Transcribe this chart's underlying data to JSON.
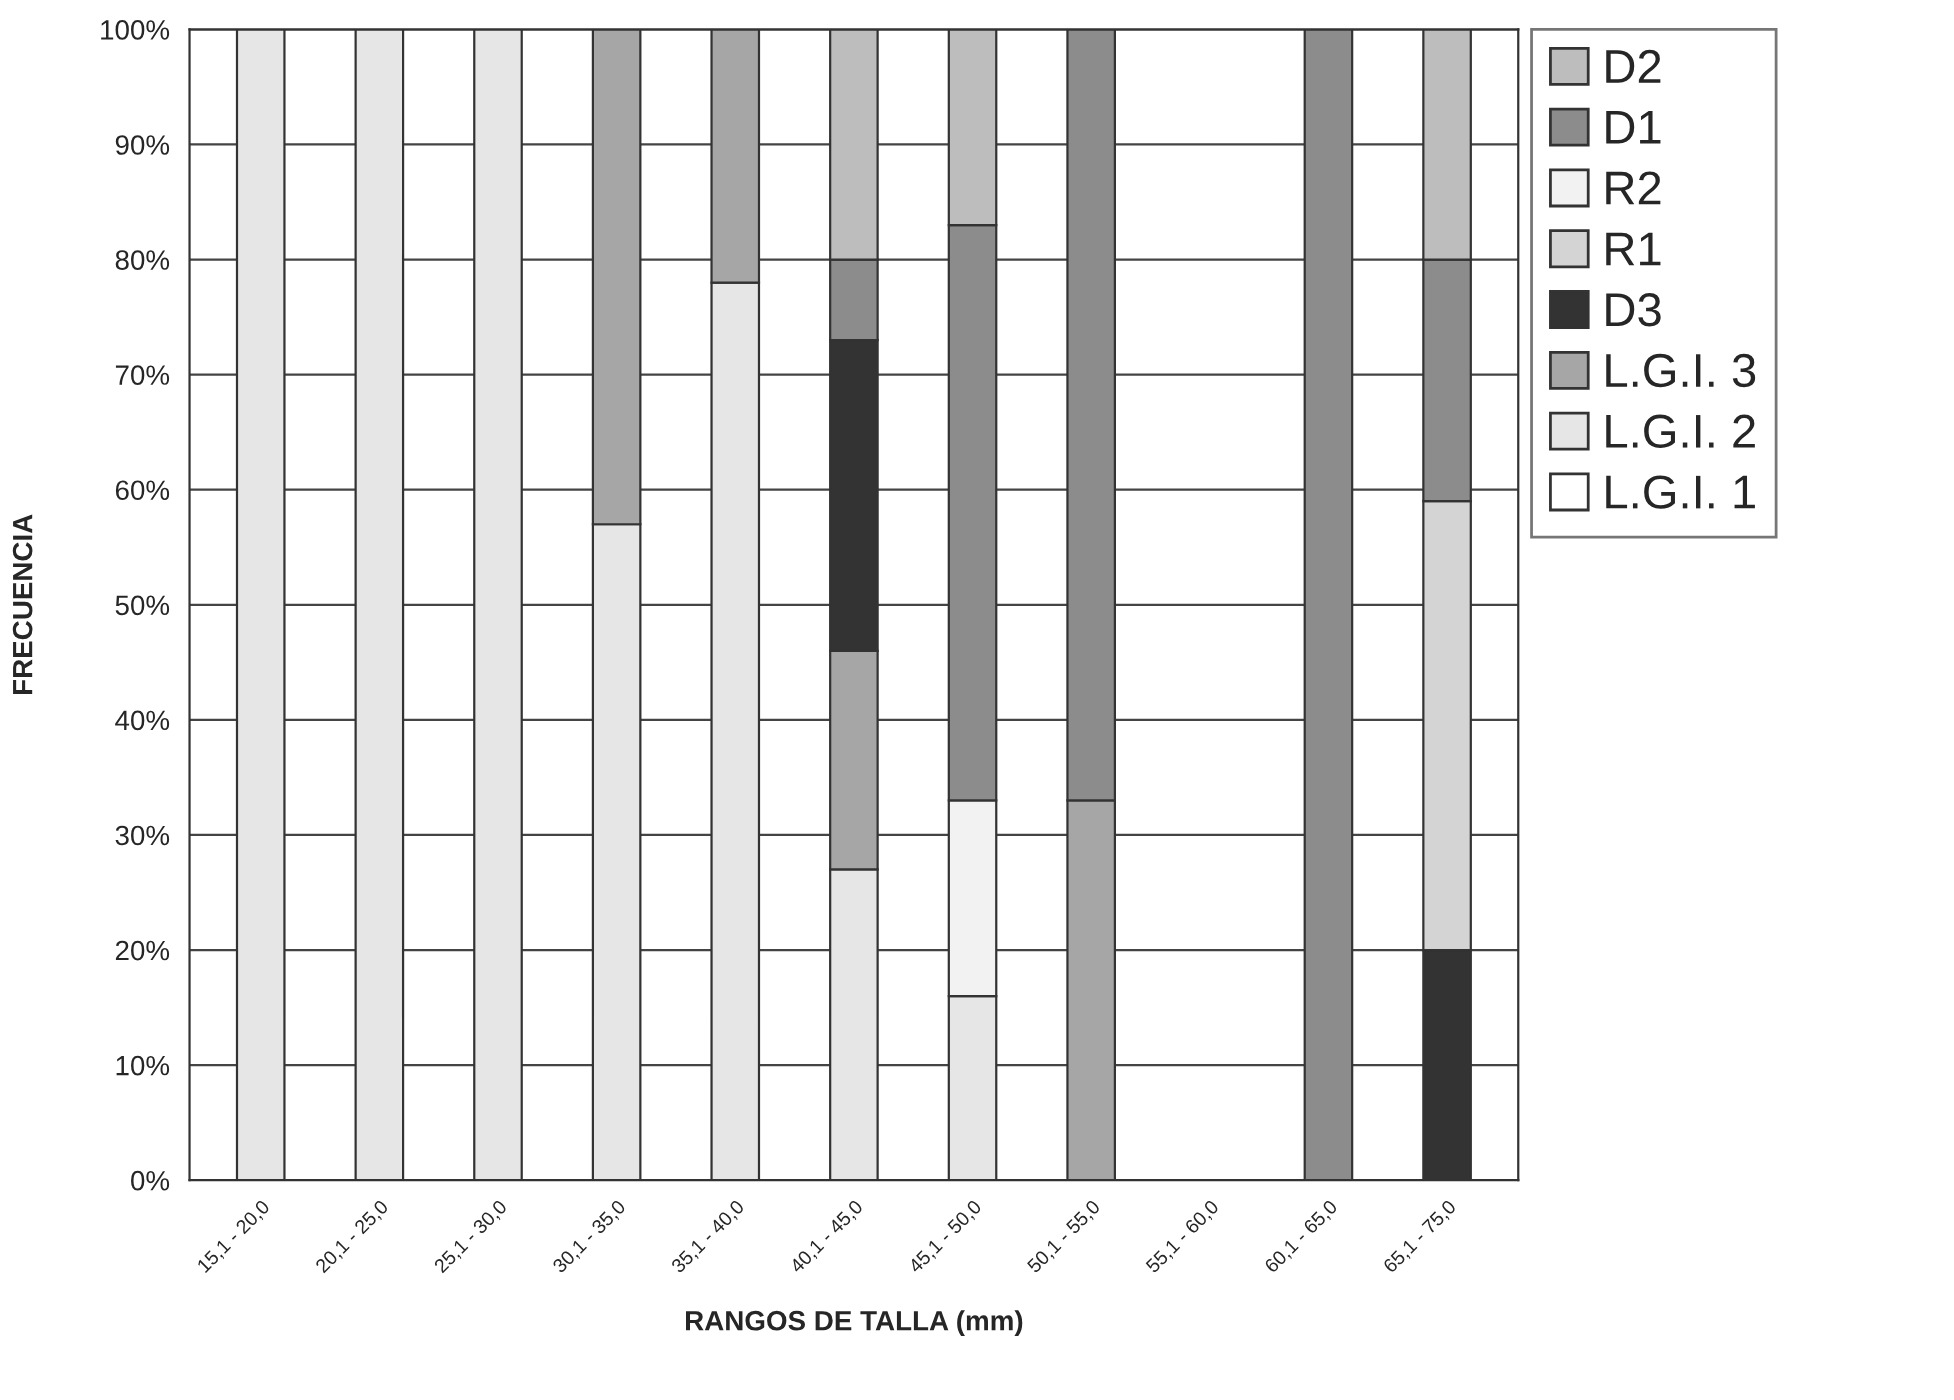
{
  "chart_data": {
    "type": "bar",
    "stacked": true,
    "xlabel": "RANGOS DE TALLA (mm)",
    "ylabel": "FRECUENCIA",
    "categories": [
      "15,1 - 20,0",
      "20,1 - 25,0",
      "25,1 - 30,0",
      "30,1 - 35,0",
      "35,1 - 40,0",
      "40,1 - 45,0",
      "45,1 - 50,0",
      "50,1 - 55,0",
      "55,1 - 60,0",
      "60,1 - 65,0",
      "65,1 - 75,0"
    ],
    "series": [
      {
        "name": "L.G.I. 1",
        "color": "#ffffff",
        "values": [
          0,
          0,
          0,
          0,
          0,
          0,
          0,
          0,
          0,
          0,
          0
        ]
      },
      {
        "name": "L.G.I. 2",
        "color": "#e6e6e6",
        "values": [
          100,
          100,
          100,
          57,
          78,
          27,
          16,
          0,
          0,
          0,
          0
        ]
      },
      {
        "name": "L.G.I. 3",
        "color": "#a6a6a6",
        "values": [
          0,
          0,
          0,
          43,
          22,
          19,
          0,
          33,
          0,
          0,
          0
        ]
      },
      {
        "name": "D3",
        "color": "#333333",
        "values": [
          0,
          0,
          0,
          0,
          0,
          27,
          0,
          0,
          0,
          0,
          20
        ]
      },
      {
        "name": "R1",
        "color": "#d4d4d4",
        "values": [
          0,
          0,
          0,
          0,
          0,
          0,
          0,
          0,
          0,
          0,
          39
        ]
      },
      {
        "name": "R2",
        "color": "#f2f2f2",
        "values": [
          0,
          0,
          0,
          0,
          0,
          0,
          17,
          0,
          0,
          0,
          0
        ]
      },
      {
        "name": "D1",
        "color": "#8c8c8c",
        "values": [
          0,
          0,
          0,
          0,
          0,
          7,
          50,
          67,
          0,
          100,
          21
        ]
      },
      {
        "name": "D2",
        "color": "#bdbdbd",
        "values": [
          0,
          0,
          0,
          0,
          0,
          20,
          17,
          0,
          0,
          0,
          20
        ]
      }
    ],
    "ylim": [
      0,
      100
    ],
    "yticks": [
      {
        "value": 0,
        "label": "0%"
      },
      {
        "value": 10,
        "label": "10%"
      },
      {
        "value": 20,
        "label": "20%"
      },
      {
        "value": 30,
        "label": "30%"
      },
      {
        "value": 40,
        "label": "40%"
      },
      {
        "value": 50,
        "label": "50%"
      },
      {
        "value": 60,
        "label": "60%"
      },
      {
        "value": 70,
        "label": "70%"
      },
      {
        "value": 80,
        "label": "80%"
      },
      {
        "value": 90,
        "label": "90%"
      },
      {
        "value": 100,
        "label": "100%"
      }
    ],
    "grid": "y",
    "legend": "right"
  }
}
